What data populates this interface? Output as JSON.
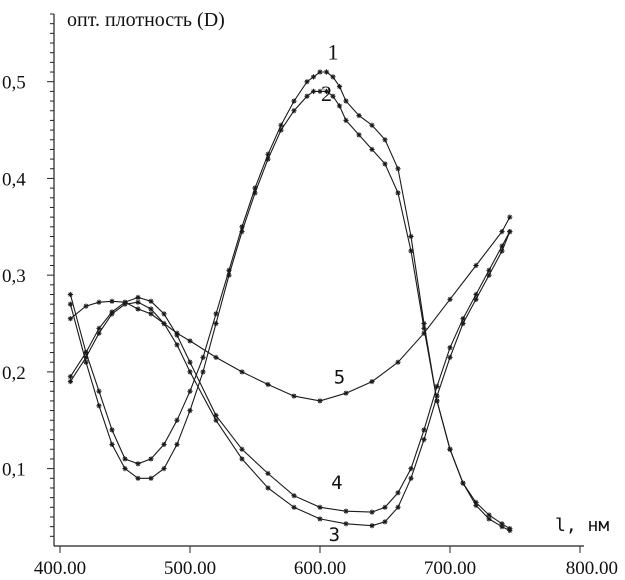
{
  "chart_data": {
    "type": "line",
    "title": "",
    "ylabel": "опт. плотность (D)",
    "xlabel": "l, нм",
    "xlim": [
      400,
      800
    ],
    "ylim": [
      0.02,
      0.57
    ],
    "x_tick_values": [
      400,
      500,
      600,
      700,
      800
    ],
    "x_tick_labels": [
      "400.00",
      "500.00",
      "600.00",
      "700.00",
      "800.00"
    ],
    "y_tick_values": [
      0.1,
      0.2,
      0.3,
      0.4,
      0.5
    ],
    "y_tick_labels": [
      "0,1",
      "0,2",
      "0,3",
      "0,4",
      "0,5"
    ],
    "grid": false,
    "series": [
      {
        "name": "1",
        "x": [
          408,
          420,
          430,
          440,
          450,
          460,
          470,
          480,
          490,
          500,
          510,
          520,
          530,
          540,
          550,
          560,
          570,
          580,
          590,
          595,
          600,
          605,
          610,
          615,
          620,
          630,
          640,
          650,
          660,
          670,
          680,
          690,
          700,
          710,
          720,
          730,
          740,
          746
        ],
        "y": [
          0.28,
          0.22,
          0.18,
          0.14,
          0.11,
          0.105,
          0.11,
          0.125,
          0.15,
          0.18,
          0.215,
          0.26,
          0.305,
          0.35,
          0.39,
          0.425,
          0.455,
          0.48,
          0.5,
          0.505,
          0.51,
          0.51,
          0.505,
          0.495,
          0.48,
          0.465,
          0.455,
          0.44,
          0.41,
          0.34,
          0.25,
          0.17,
          0.12,
          0.085,
          0.065,
          0.052,
          0.043,
          0.038
        ]
      },
      {
        "name": "2",
        "x": [
          408,
          420,
          430,
          440,
          450,
          460,
          470,
          480,
          490,
          500,
          510,
          520,
          530,
          540,
          550,
          560,
          570,
          580,
          590,
          595,
          600,
          605,
          610,
          615,
          620,
          630,
          640,
          650,
          660,
          670,
          680,
          690,
          700,
          710,
          720,
          730,
          740,
          746
        ],
        "y": [
          0.27,
          0.21,
          0.165,
          0.125,
          0.1,
          0.09,
          0.09,
          0.1,
          0.125,
          0.16,
          0.2,
          0.25,
          0.3,
          0.345,
          0.385,
          0.42,
          0.45,
          0.47,
          0.485,
          0.49,
          0.49,
          0.49,
          0.485,
          0.475,
          0.46,
          0.445,
          0.43,
          0.415,
          0.385,
          0.325,
          0.245,
          0.17,
          0.12,
          0.085,
          0.062,
          0.048,
          0.04,
          0.036
        ]
      },
      {
        "name": "3",
        "x": [
          408,
          420,
          430,
          440,
          450,
          460,
          470,
          480,
          490,
          500,
          520,
          540,
          560,
          580,
          600,
          620,
          640,
          650,
          660,
          670,
          680,
          690,
          700,
          710,
          720,
          730,
          740,
          746
        ],
        "y": [
          0.195,
          0.22,
          0.245,
          0.262,
          0.272,
          0.277,
          0.273,
          0.26,
          0.238,
          0.21,
          0.155,
          0.12,
          0.095,
          0.072,
          0.06,
          0.056,
          0.055,
          0.06,
          0.075,
          0.1,
          0.14,
          0.185,
          0.225,
          0.255,
          0.28,
          0.305,
          0.33,
          0.345
        ]
      },
      {
        "name": "4",
        "x": [
          408,
          420,
          430,
          440,
          450,
          460,
          470,
          480,
          490,
          500,
          520,
          540,
          560,
          580,
          600,
          620,
          640,
          650,
          660,
          670,
          680,
          690,
          700,
          710,
          720,
          730,
          740,
          746
        ],
        "y": [
          0.19,
          0.215,
          0.24,
          0.26,
          0.27,
          0.272,
          0.265,
          0.25,
          0.228,
          0.2,
          0.15,
          0.11,
          0.08,
          0.06,
          0.048,
          0.043,
          0.041,
          0.045,
          0.06,
          0.09,
          0.13,
          0.175,
          0.215,
          0.25,
          0.275,
          0.3,
          0.325,
          0.345
        ]
      },
      {
        "name": "5",
        "x": [
          408,
          420,
          430,
          440,
          450,
          460,
          470,
          480,
          490,
          500,
          520,
          540,
          560,
          580,
          600,
          620,
          640,
          660,
          680,
          700,
          720,
          740,
          746
        ],
        "y": [
          0.255,
          0.268,
          0.272,
          0.273,
          0.272,
          0.265,
          0.26,
          0.25,
          0.24,
          0.232,
          0.215,
          0.2,
          0.187,
          0.175,
          0.17,
          0.178,
          0.19,
          0.21,
          0.24,
          0.275,
          0.31,
          0.345,
          0.36
        ]
      }
    ],
    "curve_labels": [
      {
        "text": "1",
        "x": 610,
        "y": 0.523,
        "style": "serif"
      },
      {
        "text": "2",
        "x": 605,
        "y": 0.48,
        "style": "serif"
      },
      {
        "text": "5",
        "x": 615,
        "y": 0.188,
        "style": "mono"
      },
      {
        "text": "4",
        "x": 613,
        "y": 0.079,
        "style": "mono"
      },
      {
        "text": "3",
        "x": 611,
        "y": 0.025,
        "style": "mono"
      }
    ]
  }
}
